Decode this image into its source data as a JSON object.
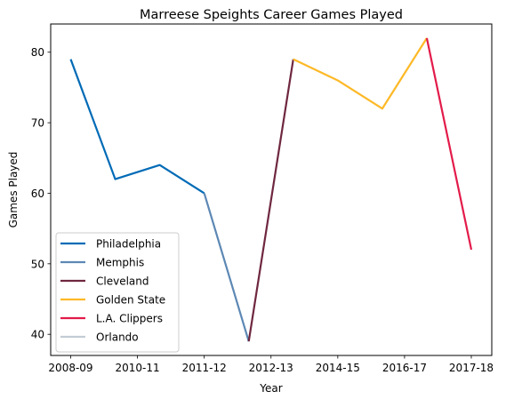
{
  "chart_data": {
    "type": "line",
    "title": "Marreese Speights Career Games Played",
    "xlabel": "Year",
    "ylabel": "Games Played",
    "x_tick_labels": [
      "2008-09",
      "2010-11",
      "2011-12",
      "2012-13",
      "2014-15",
      "2016-17",
      "2017-18"
    ],
    "y_ticks": [
      40,
      50,
      60,
      70,
      80
    ],
    "ylim": [
      37,
      84
    ],
    "x_count": 10,
    "grid": false,
    "legend_position": "lower-left",
    "series": [
      {
        "name": "Philadelphia",
        "color": "#006bb6",
        "points": [
          [
            0,
            79
          ],
          [
            1,
            62
          ],
          [
            2,
            64
          ],
          [
            3,
            60
          ]
        ]
      },
      {
        "name": "Memphis",
        "color": "#5d88b4",
        "points": [
          [
            3,
            60
          ],
          [
            4,
            39
          ]
        ]
      },
      {
        "name": "Cleveland",
        "color": "#6f2740",
        "points": [
          [
            4,
            39
          ],
          [
            5,
            79
          ]
        ]
      },
      {
        "name": "Golden State",
        "color": "#fdb927",
        "points": [
          [
            5,
            79
          ],
          [
            6,
            76
          ],
          [
            7,
            72
          ],
          [
            8,
            82
          ]
        ]
      },
      {
        "name": "L.A. Clippers",
        "color": "#e31b4a",
        "points": [
          [
            8,
            82
          ],
          [
            9,
            52
          ]
        ]
      },
      {
        "name": "Orlando",
        "color": "#c3ccd4",
        "points": []
      }
    ]
  }
}
